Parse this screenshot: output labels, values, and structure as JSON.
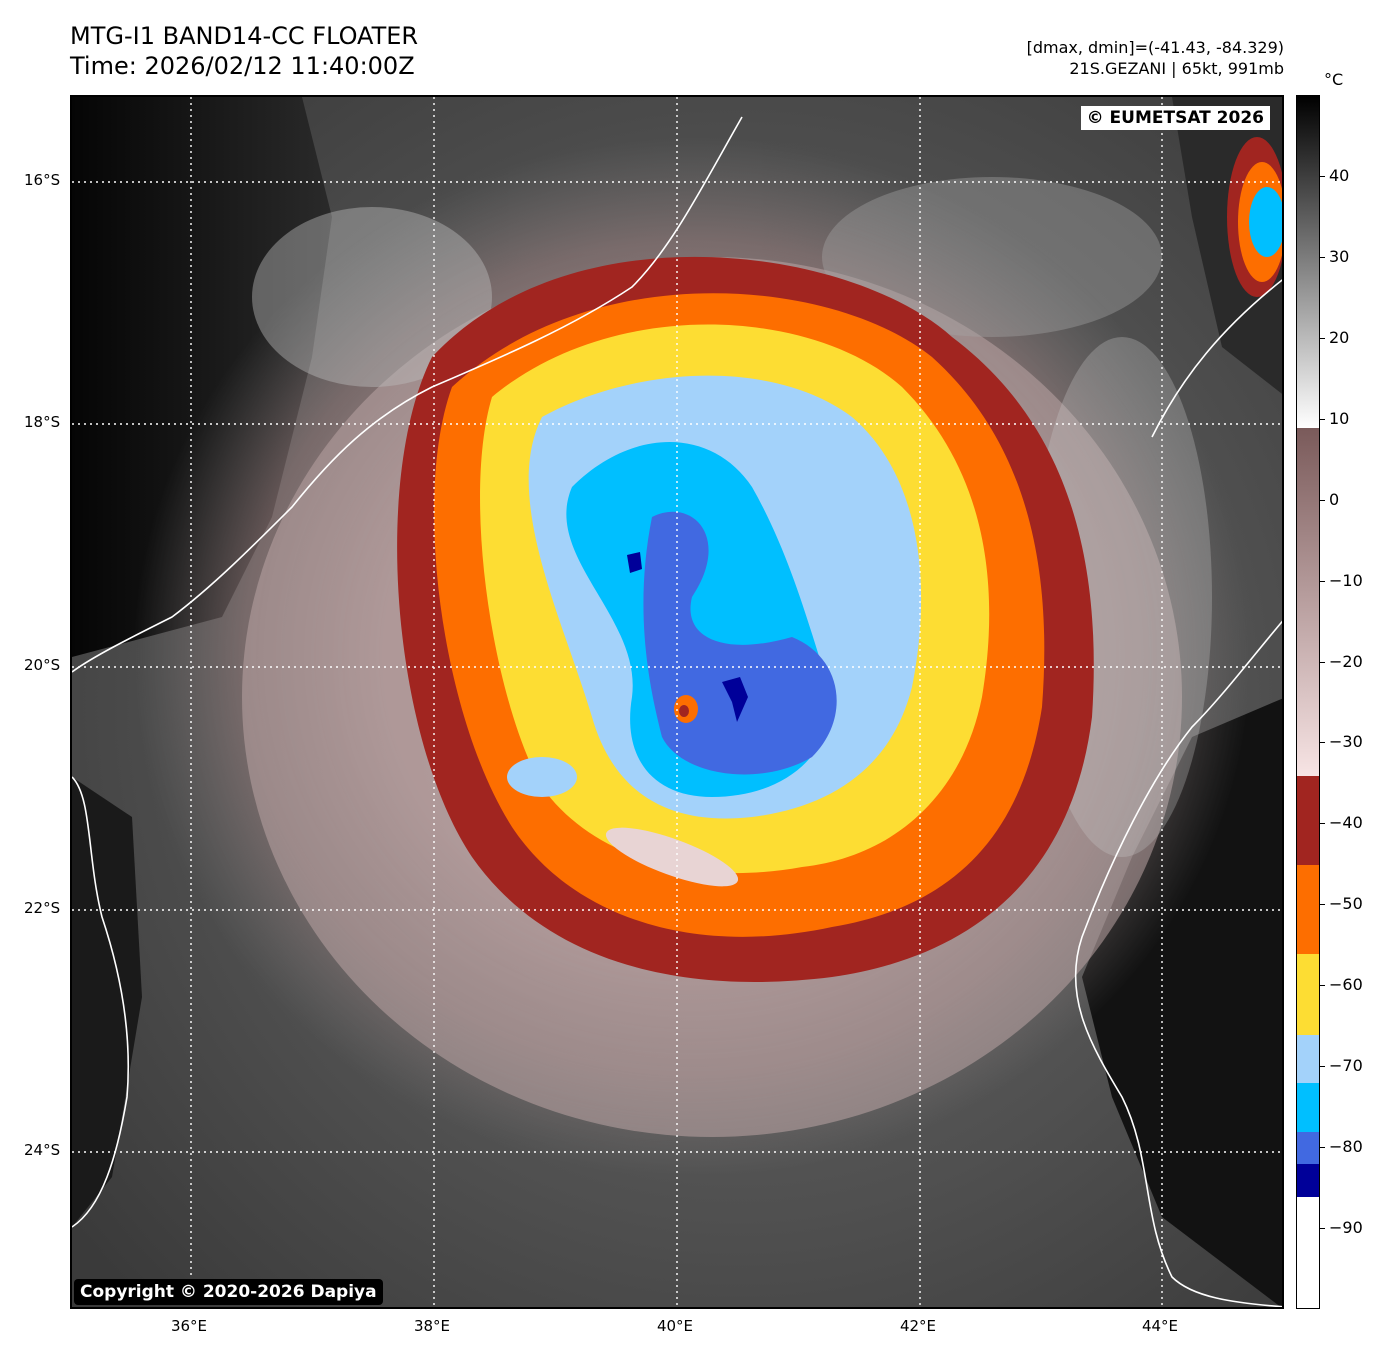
{
  "header": {
    "title_line1": "MTG-I1 BAND14-CC FLOATER",
    "title_line2": "Time: 2026/02/12 11:40:00Z",
    "info_line1": "[dmax, dmin]=(-41.43, -84.329)",
    "info_line2": "21S.GEZANI | 65kt, 991mb"
  },
  "map": {
    "watermark_top": "© EUMETSAT 2026",
    "watermark_bottom": "Copyright © 2020-2026 Dapiya",
    "lat_labels": [
      "16°S",
      "18°S",
      "20°S",
      "22°S",
      "24°S"
    ],
    "lon_labels": [
      "36°E",
      "38°E",
      "40°E",
      "42°E",
      "44°E"
    ],
    "layers": [
      "ir-cloud-field",
      "coastline",
      "lat-lon-gridlines"
    ],
    "colors": {
      "coastline": "#ffffff",
      "gridlines": "#ffffff",
      "warm_background": "#4a4a4a"
    }
  },
  "colorbar": {
    "unit": "°C",
    "tick_labels": [
      "40",
      "30",
      "20",
      "10",
      "0",
      "−10",
      "−20",
      "−30",
      "−40",
      "−50",
      "−60",
      "−70",
      "−80",
      "−90"
    ],
    "tick_values": [
      40,
      30,
      20,
      10,
      0,
      -10,
      -20,
      -30,
      -40,
      -50,
      -60,
      -70,
      -80,
      -90
    ],
    "range": [
      -100,
      50
    ],
    "segments": [
      {
        "from": -100,
        "to": -86,
        "color": "#ffffff"
      },
      {
        "from": -86,
        "to": -82,
        "color": "#000099"
      },
      {
        "from": -82,
        "to": -78,
        "color": "#4169e1"
      },
      {
        "from": -78,
        "to": -72,
        "color": "#00bfff"
      },
      {
        "from": -72,
        "to": -66,
        "color": "#a3d2fa"
      },
      {
        "from": -66,
        "to": -56,
        "color": "#fddd33"
      },
      {
        "from": -56,
        "to": -45,
        "color": "#fd6e00"
      },
      {
        "from": -45,
        "to": -34,
        "color": "#a12520"
      }
    ],
    "gradient_ranges": [
      {
        "from": -34,
        "to": 9,
        "color_low": "#f7e4e4",
        "color_high": "#7a5a5a"
      },
      {
        "from": 9,
        "to": 50,
        "color_low": "#ffffff",
        "color_high": "#000000"
      }
    ]
  }
}
